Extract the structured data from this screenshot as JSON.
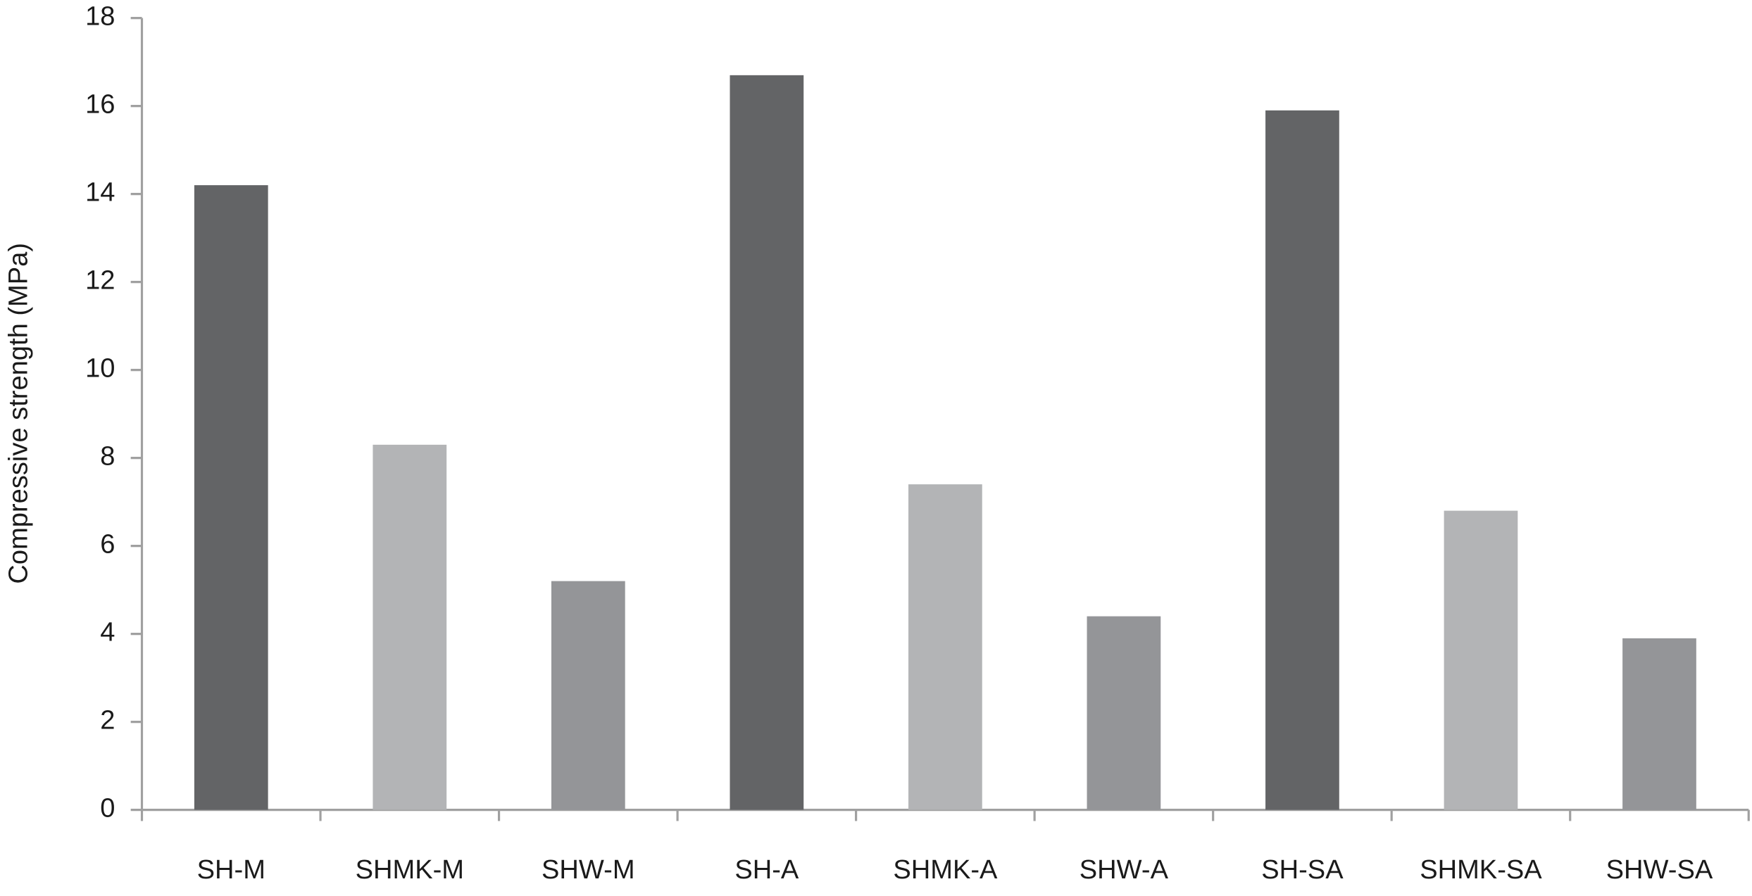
{
  "chart_data": {
    "type": "bar",
    "y_label": "Compressive strength (MPa)",
    "categories": [
      "SH-M",
      "SHMK-M",
      "SHW-M",
      "SH-A",
      "SHMK-A",
      "SHW-A",
      "SH-SA",
      "SHMK-SA",
      "SHW-SA"
    ],
    "values": [
      14.2,
      8.3,
      5.2,
      16.7,
      7.4,
      4.4,
      15.9,
      6.8,
      3.9
    ],
    "colors": [
      "#636466",
      "#b3b4b6",
      "#949598",
      "#636466",
      "#b3b4b6",
      "#949598",
      "#636466",
      "#b3b4b6",
      "#949598"
    ],
    "ylim": [
      0,
      18
    ],
    "yticks": [
      0,
      2,
      4,
      6,
      8,
      10,
      12,
      14,
      16,
      18
    ],
    "grid": false
  }
}
